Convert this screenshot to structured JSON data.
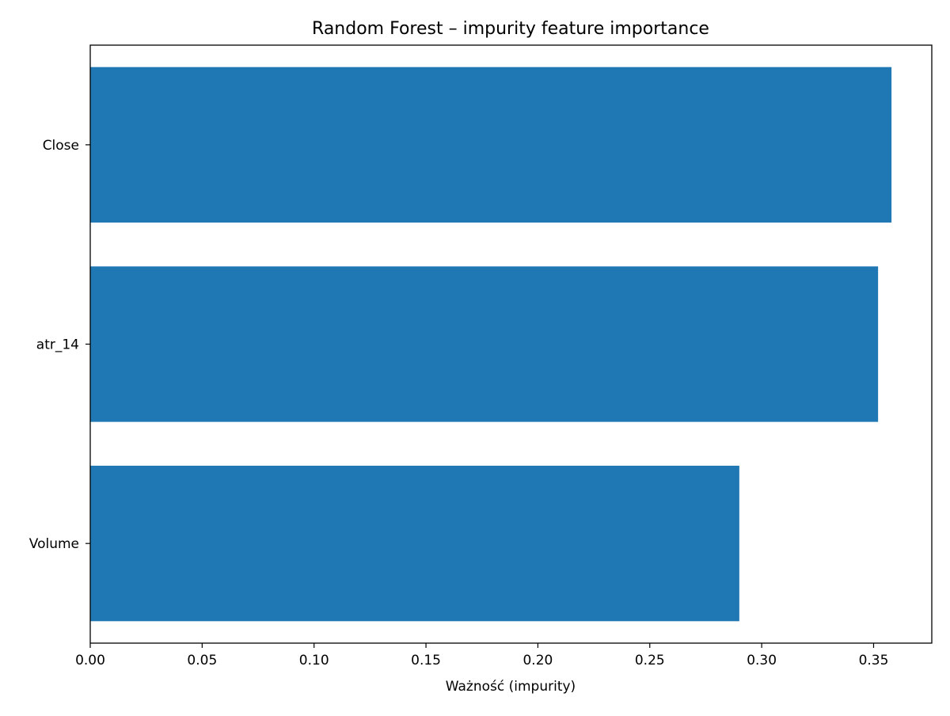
{
  "chart_data": {
    "type": "bar",
    "orientation": "horizontal",
    "title": "Random Forest – impurity feature importance",
    "xlabel": "Ważność (impurity)",
    "ylabel": "",
    "categories": [
      "Close",
      "atr_14",
      "Volume"
    ],
    "values": [
      0.358,
      0.352,
      0.29
    ],
    "xlim": [
      0,
      0.376
    ],
    "xticks": [
      "0.00",
      "0.05",
      "0.10",
      "0.15",
      "0.20",
      "0.25",
      "0.30",
      "0.35"
    ],
    "bar_color": "#1f77b4",
    "grid": false,
    "legend": false
  }
}
